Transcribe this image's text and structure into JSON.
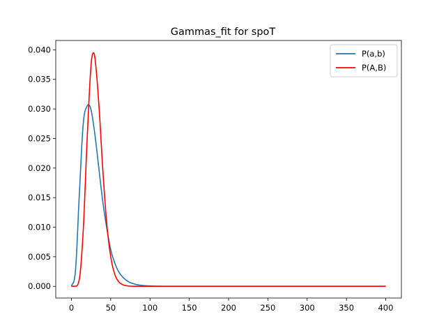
{
  "chart_data": {
    "type": "line",
    "title": "Gammas_fit for spoT",
    "xlabel": "",
    "ylabel": "",
    "xlim": [
      -20,
      420
    ],
    "ylim": [
      -0.00198,
      0.04158
    ],
    "x_ticks": [
      0,
      50,
      100,
      150,
      200,
      250,
      300,
      350,
      400
    ],
    "y_ticks": [
      0.0,
      0.005,
      0.01,
      0.015,
      0.02,
      0.025,
      0.03,
      0.035,
      0.04
    ],
    "y_tick_labels": [
      "0.000",
      "0.005",
      "0.010",
      "0.015",
      "0.020",
      "0.025",
      "0.030",
      "0.035",
      "0.040"
    ],
    "grid": false,
    "legend_position": "top-right",
    "series": [
      {
        "name": "P(a,b)",
        "color": "#1f77b4",
        "x": [
          0,
          5,
          10,
          15,
          20,
          22,
          25,
          30,
          35,
          40,
          45,
          50,
          55,
          60,
          70,
          80,
          90,
          100,
          110,
          120,
          150,
          200,
          250,
          300,
          350,
          400
        ],
        "y": [
          0,
          0.0025,
          0.0155,
          0.0275,
          0.0305,
          0.0307,
          0.0298,
          0.0255,
          0.0198,
          0.0142,
          0.0098,
          0.0062,
          0.004,
          0.0025,
          0.001,
          0.0004,
          0.00015,
          6e-05,
          2e-05,
          1e-05,
          0,
          0,
          0,
          0,
          0,
          0
        ]
      },
      {
        "name": "P(A,B)",
        "color": "#ff0000",
        "x": [
          0,
          5,
          10,
          15,
          20,
          25,
          28,
          30,
          35,
          40,
          45,
          50,
          55,
          60,
          65,
          70,
          80,
          90,
          100,
          110,
          120,
          150,
          200,
          250,
          300,
          350,
          400
        ],
        "y": [
          0,
          2e-05,
          0.0012,
          0.0095,
          0.025,
          0.0375,
          0.0395,
          0.0385,
          0.0305,
          0.0195,
          0.0105,
          0.005,
          0.0021,
          0.0008,
          0.0003,
          0.0001,
          1e-05,
          0,
          0,
          0,
          0,
          0,
          0,
          0,
          0,
          0,
          0
        ]
      }
    ]
  }
}
